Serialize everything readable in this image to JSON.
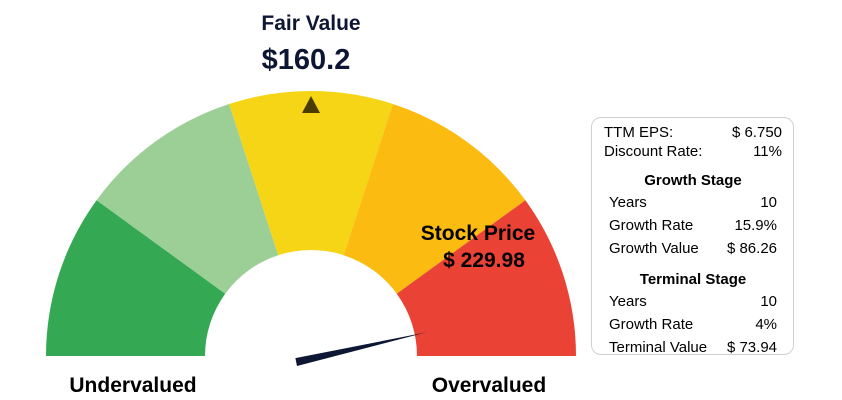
{
  "chart_data": {
    "type": "gauge",
    "title": "Fair Value",
    "fair_value_label": "$160.2",
    "fair_value": 160.2,
    "stock_price_label": "Stock Price",
    "stock_price_value": "$ 229.98",
    "stock_price": 229.98,
    "left_label": "Undervalued",
    "right_label": "Overvalued",
    "segments": [
      {
        "color": "#34a853"
      },
      {
        "color": "#9bcf96"
      },
      {
        "color": "#f5d516"
      },
      {
        "color": "#fbbb10"
      },
      {
        "color": "#ea4335"
      }
    ],
    "needle_color": "#0d1633",
    "marker_color": "#4a3b00"
  },
  "panel": {
    "ttm_eps_label": "TTM EPS:",
    "ttm_eps_value": "$ 6.750",
    "discount_rate_label": "Discount Rate:",
    "discount_rate_value": "11%",
    "growth_stage": {
      "title": "Growth Stage",
      "years_label": "Years",
      "years_value": "10",
      "rate_label": "Growth Rate",
      "rate_value": "15.9%",
      "value_label": "Growth Value",
      "value_value": "$ 86.26"
    },
    "terminal_stage": {
      "title": "Terminal Stage",
      "years_label": "Years",
      "years_value": "10",
      "rate_label": "Growth Rate",
      "rate_value": "4%",
      "value_label": "Terminal Value",
      "value_value": "$ 73.94"
    }
  }
}
